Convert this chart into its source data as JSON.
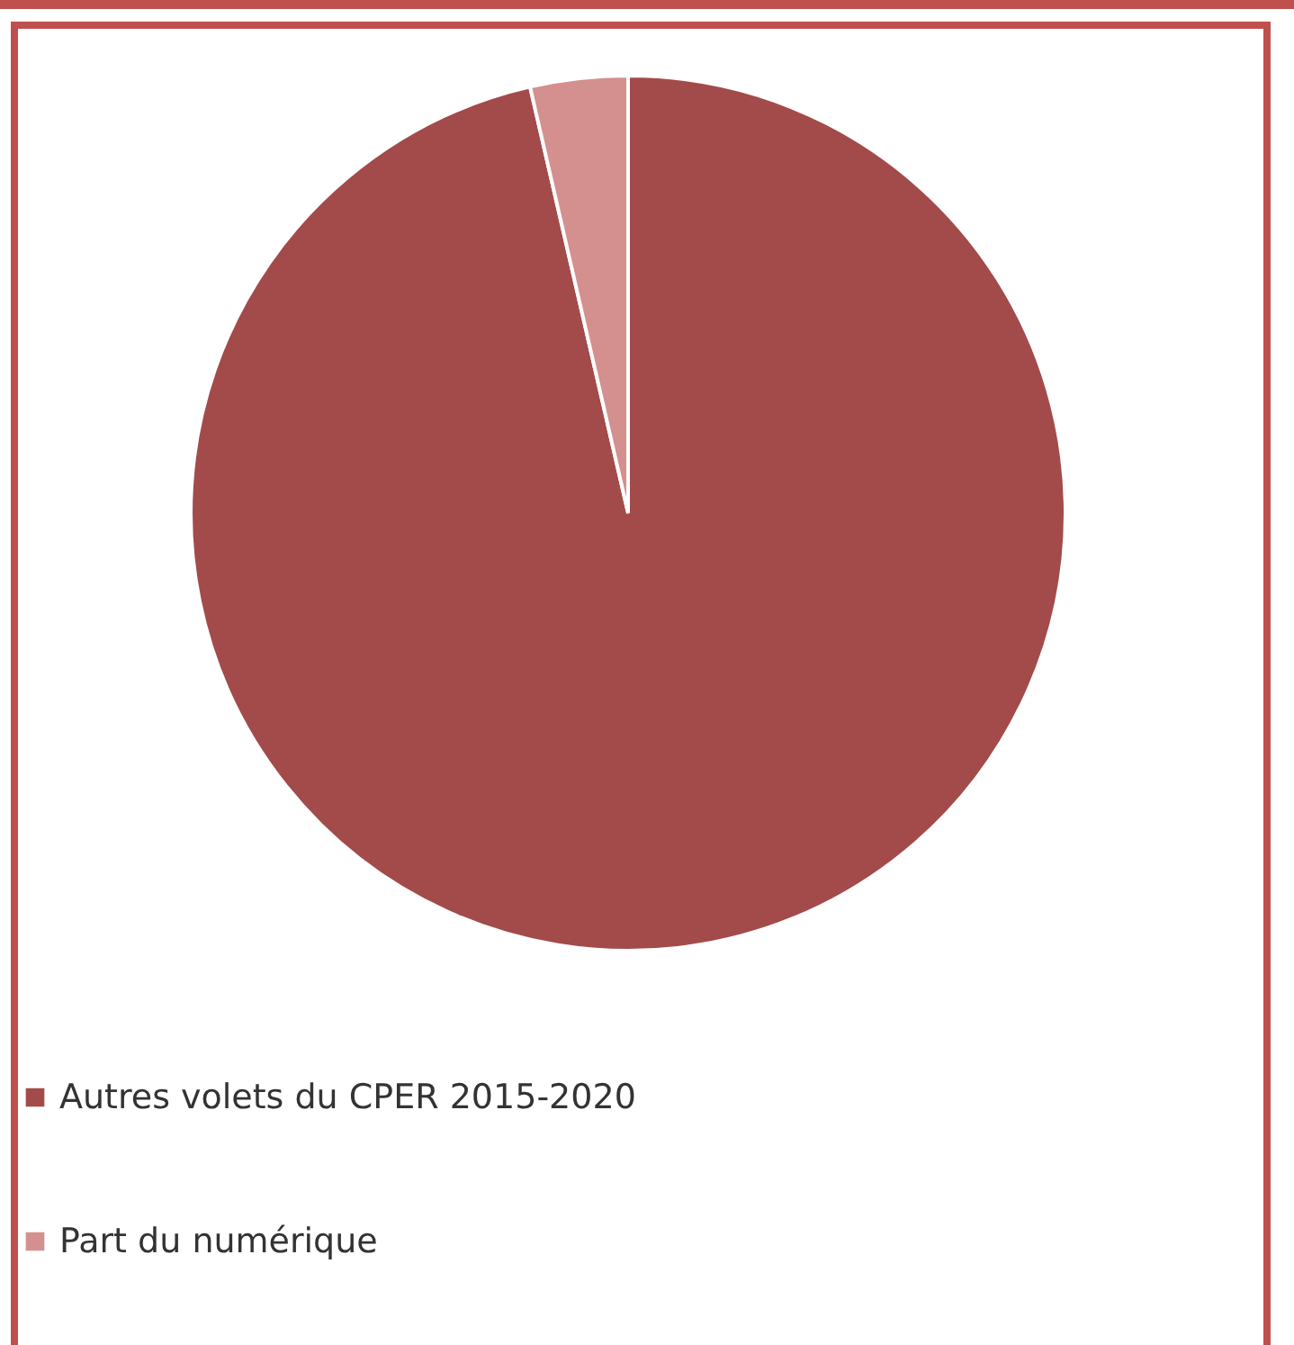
{
  "chart_data": {
    "type": "pie",
    "categories": [
      "Autres volets du CPER 2015-2020",
      "Part du numérique"
    ],
    "values": [
      96.4,
      3.6
    ],
    "colors": [
      "#a34a4a",
      "#d48f8f"
    ],
    "legend": "bottom"
  }
}
